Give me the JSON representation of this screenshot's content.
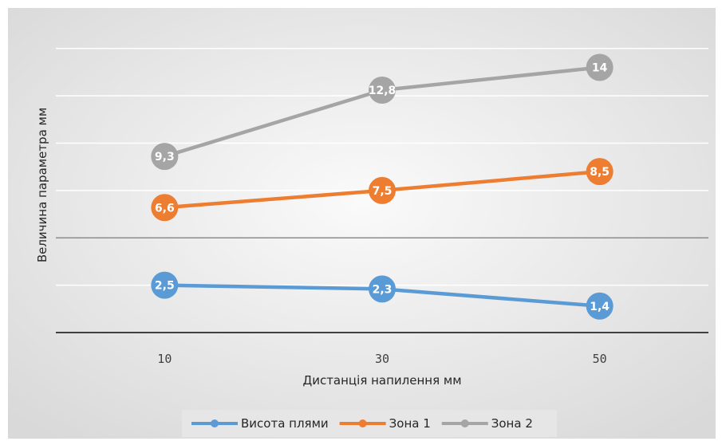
{
  "chart_data": {
    "type": "line",
    "title": "",
    "xlabel": "Дистанція напилення мм",
    "ylabel": "Величина параметра мм",
    "categories": [
      "10",
      "30",
      "50"
    ],
    "ylim": [
      0,
      16
    ],
    "y_grid_step": 2.5,
    "grid": true,
    "legend_position": "bottom",
    "series": [
      {
        "name": "Висота плями",
        "values": [
          2.5,
          2.3,
          1.4
        ],
        "labels": [
          "2,5",
          "2,3",
          "1,4"
        ],
        "color": "#5b9bd5"
      },
      {
        "name": "Зона 1",
        "values": [
          6.6,
          7.5,
          8.5
        ],
        "labels": [
          "6,6",
          "7,5",
          "8,5"
        ],
        "color": "#ed7d31"
      },
      {
        "name": "Зона 2",
        "values": [
          9.3,
          12.8,
          14
        ],
        "labels": [
          "9,3",
          "12,8",
          "14"
        ],
        "color": "#a5a5a5"
      }
    ]
  }
}
